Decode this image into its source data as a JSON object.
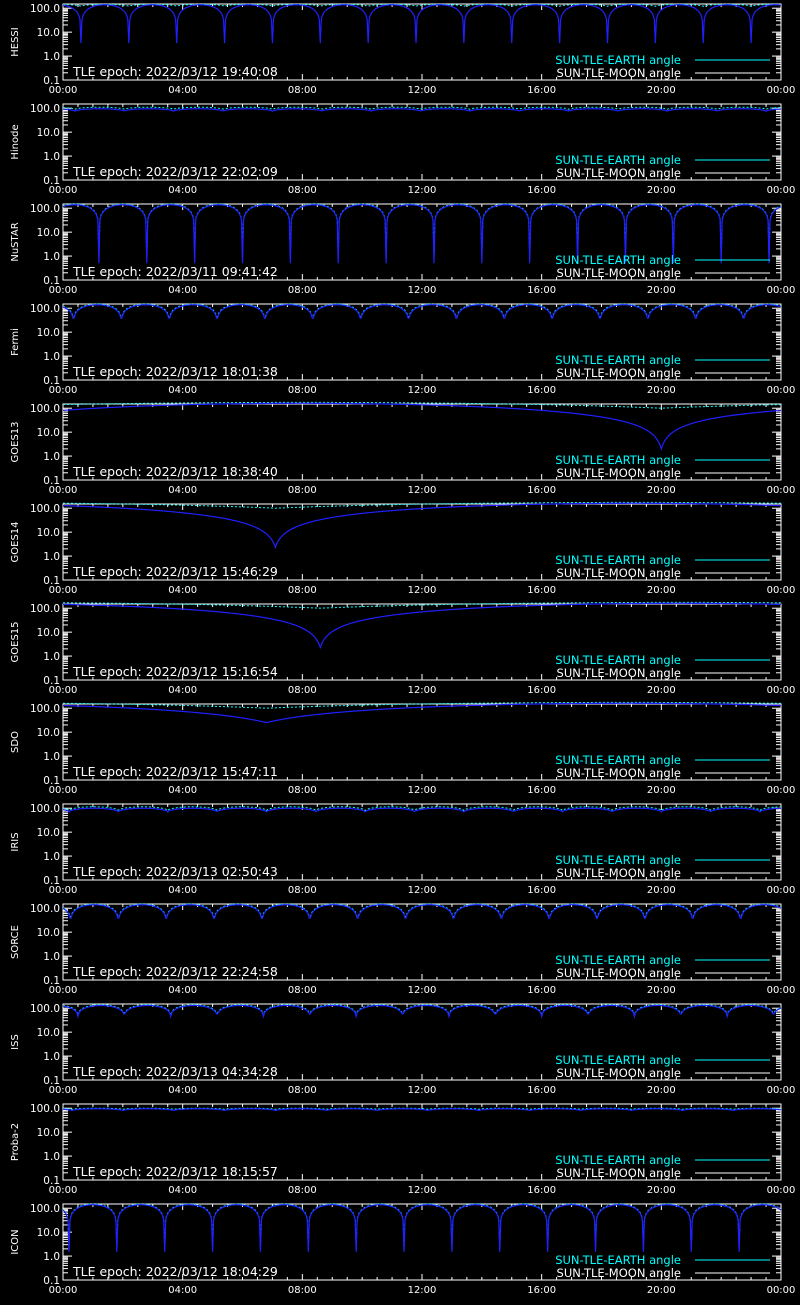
{
  "colors": {
    "background": "#000000",
    "axis": "#ffffff",
    "earth": "#00ffff",
    "moon_curve": "#2020ff",
    "moon_legend": "#ffffff"
  },
  "legend": {
    "earth_label": "SUN-TLE-EARTH angle",
    "moon_label": "SUN-TLE-MOON angle"
  },
  "chart_data": [
    {
      "type": "line",
      "panel": "HESSI",
      "epoch_label": "TLE epoch: 2022/03/12 19:40:08",
      "x_ticks": [
        "00:00",
        "04:00",
        "08:00",
        "12:00",
        "16:00",
        "20:00",
        "00:00"
      ],
      "y_ticks": [
        "0.1",
        "1.0",
        "10.0",
        "100.0"
      ],
      "y_scale": "log",
      "ylim": [
        0.1,
        150
      ],
      "xlim_hours": [
        0,
        24
      ],
      "moon": {
        "kind": "periodic",
        "period_h": 1.6,
        "phase_h": 0.6,
        "min_deg": 3.5,
        "max_deg": 140
      },
      "earth": {
        "kind": "periodic",
        "period_h": 1.6,
        "phase_h": 0.6,
        "min_deg": 120,
        "max_deg": 145
      }
    },
    {
      "type": "line",
      "panel": "Hinode",
      "epoch_label": "TLE epoch: 2022/03/12 22:02:09",
      "x_ticks": [
        "00:00",
        "04:00",
        "08:00",
        "12:00",
        "16:00",
        "20:00",
        "00:00"
      ],
      "y_ticks": [
        "0.1",
        "1.0",
        "10.0",
        "100.0"
      ],
      "y_scale": "log",
      "ylim": [
        0.1,
        150
      ],
      "xlim_hours": [
        0,
        24
      ],
      "moon": {
        "kind": "periodic",
        "period_h": 1.65,
        "phase_h": 0.4,
        "min_deg": 75,
        "max_deg": 95
      },
      "earth": {
        "kind": "periodic",
        "period_h": 1.65,
        "phase_h": 0.4,
        "min_deg": 90,
        "max_deg": 110
      }
    },
    {
      "type": "line",
      "panel": "NuSTAR",
      "epoch_label": "TLE epoch: 2022/03/11 09:41:42",
      "x_ticks": [
        "00:00",
        "04:00",
        "08:00",
        "12:00",
        "16:00",
        "20:00",
        "00:00"
      ],
      "y_ticks": [
        "0.1",
        "1.0",
        "10.0",
        "100.0"
      ],
      "y_scale": "log",
      "ylim": [
        0.1,
        150
      ],
      "xlim_hours": [
        0,
        24
      ],
      "moon": {
        "kind": "periodic",
        "period_h": 1.6,
        "phase_h": 1.2,
        "min_deg": 0.5,
        "max_deg": 140
      },
      "earth": {
        "kind": "periodic",
        "period_h": 1.6,
        "phase_h": 1.2,
        "min_deg": 0.8,
        "max_deg": 150
      }
    },
    {
      "type": "line",
      "panel": "Fermi",
      "epoch_label": "TLE epoch: 2022/03/12 18:01:38",
      "x_ticks": [
        "00:00",
        "04:00",
        "08:00",
        "12:00",
        "16:00",
        "20:00",
        "00:00"
      ],
      "y_ticks": [
        "0.1",
        "1.0",
        "10.0",
        "100.0"
      ],
      "y_scale": "log",
      "ylim": [
        0.1,
        150
      ],
      "xlim_hours": [
        0,
        24
      ],
      "moon": {
        "kind": "periodic",
        "period_h": 1.6,
        "phase_h": 0.35,
        "min_deg": 20,
        "max_deg": 140
      },
      "earth": {
        "kind": "periodic",
        "period_h": 1.6,
        "phase_h": 0.35,
        "min_deg": 25,
        "max_deg": 150
      }
    },
    {
      "type": "line",
      "panel": "GOES13",
      "epoch_label": "TLE epoch: 2022/03/12 18:38:40",
      "x_ticks": [
        "00:00",
        "04:00",
        "08:00",
        "12:00",
        "16:00",
        "20:00",
        "00:00"
      ],
      "y_ticks": [
        "0.1",
        "1.0",
        "10.0",
        "100.0"
      ],
      "y_scale": "log",
      "ylim": [
        0.1,
        150
      ],
      "xlim_hours": [
        0,
        24
      ],
      "moon": {
        "kind": "geo",
        "min_t_h": 20.0,
        "min_deg": 2.0,
        "max_deg": 160
      },
      "earth": {
        "kind": "geo_earth",
        "max_t_h": 8.0,
        "min_deg": 100,
        "max_deg": 175
      }
    },
    {
      "type": "line",
      "panel": "GOES14",
      "epoch_label": "TLE epoch: 2022/03/12 15:46:29",
      "x_ticks": [
        "00:00",
        "04:00",
        "08:00",
        "12:00",
        "16:00",
        "20:00",
        "00:00"
      ],
      "y_ticks": [
        "0.1",
        "1.0",
        "10.0",
        "100.0"
      ],
      "y_scale": "log",
      "ylim": [
        0.1,
        150
      ],
      "xlim_hours": [
        0,
        24
      ],
      "moon": {
        "kind": "geo",
        "min_t_h": 7.1,
        "min_deg": 2.3,
        "max_deg": 160
      },
      "earth": {
        "kind": "geo_earth",
        "max_t_h": 19.1,
        "min_deg": 100,
        "max_deg": 175
      }
    },
    {
      "type": "line",
      "panel": "GOES15",
      "epoch_label": "TLE epoch: 2022/03/12 15:16:54",
      "x_ticks": [
        "00:00",
        "04:00",
        "08:00",
        "12:00",
        "16:00",
        "20:00",
        "00:00"
      ],
      "y_ticks": [
        "0.1",
        "1.0",
        "10.0",
        "100.0"
      ],
      "y_scale": "log",
      "ylim": [
        0.1,
        150
      ],
      "xlim_hours": [
        0,
        24
      ],
      "moon": {
        "kind": "geo",
        "min_t_h": 8.6,
        "min_deg": 2.3,
        "max_deg": 160
      },
      "earth": {
        "kind": "geo_earth",
        "max_t_h": 20.6,
        "min_deg": 100,
        "max_deg": 175
      }
    },
    {
      "type": "line",
      "panel": "SDO",
      "epoch_label": "TLE epoch: 2022/03/12 15:47:11",
      "x_ticks": [
        "00:00",
        "04:00",
        "08:00",
        "12:00",
        "16:00",
        "20:00",
        "00:00"
      ],
      "y_ticks": [
        "0.1",
        "1.0",
        "10.0",
        "100.0"
      ],
      "y_scale": "log",
      "ylim": [
        0.1,
        150
      ],
      "xlim_hours": [
        0,
        24
      ],
      "moon": {
        "kind": "geo",
        "min_t_h": 6.8,
        "min_deg": 25,
        "max_deg": 160
      },
      "earth": {
        "kind": "geo_earth",
        "max_t_h": 18.8,
        "min_deg": 100,
        "max_deg": 175
      }
    },
    {
      "type": "line",
      "panel": "IRIS",
      "epoch_label": "TLE epoch: 2022/03/13 02:50:43",
      "x_ticks": [
        "00:00",
        "04:00",
        "08:00",
        "12:00",
        "16:00",
        "20:00",
        "00:00"
      ],
      "y_ticks": [
        "0.1",
        "1.0",
        "10.0",
        "100.0"
      ],
      "y_scale": "log",
      "ylim": [
        0.1,
        150
      ],
      "xlim_hours": [
        0,
        24
      ],
      "moon": {
        "kind": "periodic",
        "period_h": 1.65,
        "phase_h": 0.2,
        "min_deg": 70,
        "max_deg": 100
      },
      "earth": {
        "kind": "periodic",
        "period_h": 1.65,
        "phase_h": 0.2,
        "min_deg": 80,
        "max_deg": 115
      }
    },
    {
      "type": "line",
      "panel": "SORCE",
      "epoch_label": "TLE epoch: 2022/03/12 22:24:58",
      "x_ticks": [
        "00:00",
        "04:00",
        "08:00",
        "12:00",
        "16:00",
        "20:00",
        "00:00"
      ],
      "y_ticks": [
        "0.1",
        "1.0",
        "10.0",
        "100.0"
      ],
      "y_scale": "log",
      "ylim": [
        0.1,
        150
      ],
      "xlim_hours": [
        0,
        24
      ],
      "moon": {
        "kind": "periodic",
        "period_h": 1.6,
        "phase_h": 0.25,
        "min_deg": 20,
        "max_deg": 140
      },
      "earth": {
        "kind": "periodic",
        "period_h": 1.6,
        "phase_h": 0.25,
        "min_deg": 25,
        "max_deg": 150
      }
    },
    {
      "type": "line",
      "panel": "ISS",
      "epoch_label": "TLE epoch: 2022/03/13 04:34:28",
      "x_ticks": [
        "00:00",
        "04:00",
        "08:00",
        "12:00",
        "16:00",
        "20:00",
        "00:00"
      ],
      "y_ticks": [
        "0.1",
        "1.0",
        "10.0",
        "100.0"
      ],
      "y_scale": "log",
      "ylim": [
        0.1,
        150
      ],
      "xlim_hours": [
        0,
        24
      ],
      "moon": {
        "kind": "periodic",
        "period_h": 1.55,
        "phase_h": 0.5,
        "min_deg": 45,
        "max_deg": 130
      },
      "earth": {
        "kind": "periodic",
        "period_h": 1.55,
        "phase_h": 0.5,
        "min_deg": 50,
        "max_deg": 140
      }
    },
    {
      "type": "line",
      "panel": "Proba-2",
      "epoch_label": "TLE epoch: 2022/03/12 18:15:57",
      "x_ticks": [
        "00:00",
        "04:00",
        "08:00",
        "12:00",
        "16:00",
        "20:00",
        "00:00"
      ],
      "y_ticks": [
        "0.1",
        "1.0",
        "10.0",
        "100.0"
      ],
      "y_scale": "log",
      "ylim": [
        0.1,
        150
      ],
      "xlim_hours": [
        0,
        24
      ],
      "moon": {
        "kind": "periodic",
        "period_h": 1.7,
        "phase_h": 0.3,
        "min_deg": 80,
        "max_deg": 95
      },
      "earth": {
        "kind": "periodic",
        "period_h": 1.7,
        "phase_h": 0.3,
        "min_deg": 90,
        "max_deg": 100
      }
    },
    {
      "type": "line",
      "panel": "ICON",
      "epoch_label": "TLE epoch: 2022/03/12 18:04:29",
      "x_ticks": [
        "00:00",
        "04:00",
        "08:00",
        "12:00",
        "16:00",
        "20:00",
        "00:00"
      ],
      "y_ticks": [
        "0.1",
        "1.0",
        "10.0",
        "100.0"
      ],
      "y_scale": "log",
      "ylim": [
        0.1,
        150
      ],
      "xlim_hours": [
        0,
        24
      ],
      "moon": {
        "kind": "periodic",
        "period_h": 1.6,
        "phase_h": 0.2,
        "min_deg": 1.5,
        "max_deg": 140
      },
      "earth": {
        "kind": "periodic",
        "period_h": 1.6,
        "phase_h": 0.2,
        "min_deg": 2.0,
        "max_deg": 150
      }
    }
  ]
}
